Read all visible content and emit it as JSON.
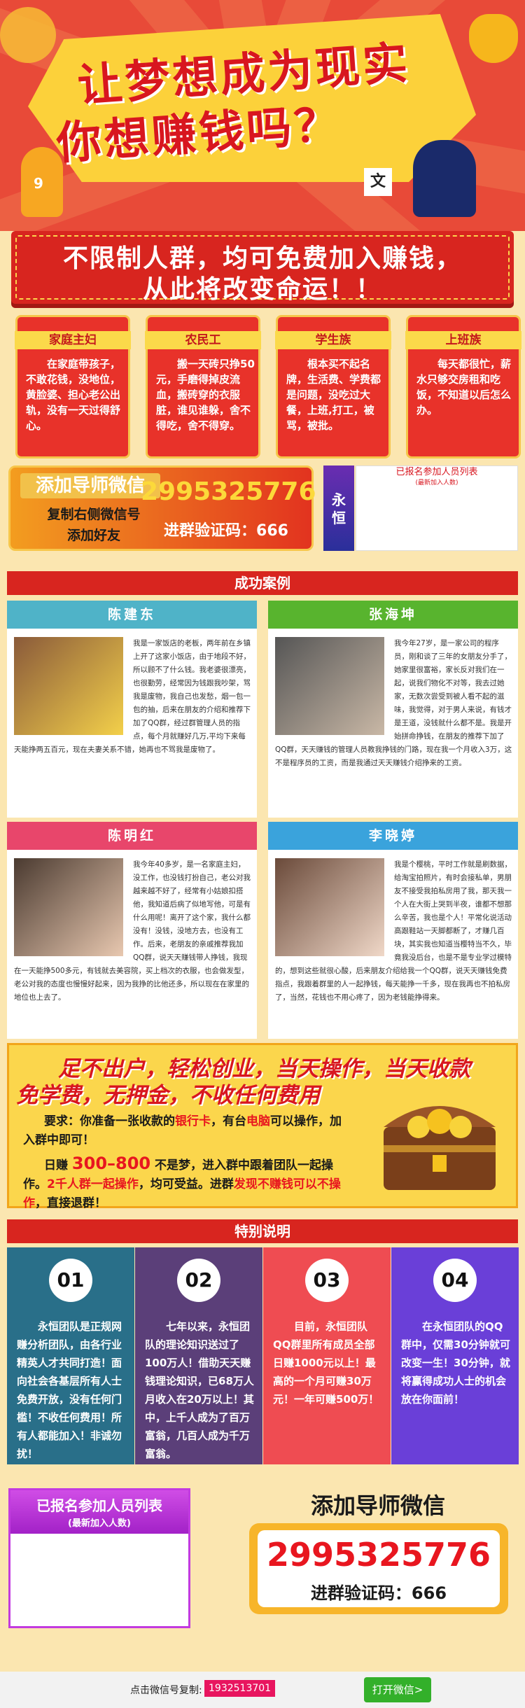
{
  "hero": {
    "line1": "让梦想成为现实",
    "line2": "你想赚钱吗？",
    "side_char": "文",
    "shirt_number": "9"
  },
  "banner": {
    "line1": "不限制人群，均可免费加入赚钱，",
    "line2": "从此将改变命运！！"
  },
  "persons": [
    {
      "tag": "家庭主妇",
      "text": "在家庭带孩子，不敢花钱，没地位，黄脸婆、担心老公出轨，没有一天过得舒心。"
    },
    {
      "tag": "农民工",
      "text": "搬一天砖只挣50元，手磨得掉皮流血，搬砖穿的衣服脏，谁见谁躲，舍不得吃，舍不得穿。"
    },
    {
      "tag": "学生族",
      "text": "根本买不起名牌，生活费、学费都是问题，没吃过大餐，上班,打工，被骂，被批。"
    },
    {
      "tag": "上班族",
      "text": "每天都很忙，薪水只够交房租和吃饭，不知道以后怎么办。"
    }
  ],
  "mentor": {
    "title": "添加导师微信",
    "copy_line1": "复制右侧微信号",
    "copy_line2": "添加好友",
    "number": "2995325776",
    "code_label": "进群验证码：666",
    "side_label": "永恒"
  },
  "reglist_small": {
    "title": "已报名参加人员列表",
    "subtitle": "(最新加入人数)"
  },
  "sections": {
    "cases": "成功案例",
    "special": "特别说明"
  },
  "cases": [
    {
      "name": "陈建东",
      "color": "#4fb3c8",
      "text": "我是一家饭店的老板，两年前在乡镇上开了这家小饭店，由于地段不好，所以顾不了什么钱。我老婆很漂亮，也很勤劳，经常因为钱跟我吵架，骂我是废物，我自己也发愁，烟一包一包的抽，后来在朋友的介绍和推荐下加了QQ群，经过群管理人员的指点，每个月就赚好几万,平均下来每天能挣两五百元，现在夫妻关系不错，她再也不骂我是废物了。"
    },
    {
      "name": "张海坤",
      "color": "#58b42e",
      "text": "我今年27岁，是一家公司的程序员，刚和谈了三年的女朋友分手了，她家里很富裕，家长反对我们在一起，说我们物化不对等，我去过她家，无数次尝受到被人看不起的滋味，我觉得，对于男人来说，有钱才是王道，没钱就什么都不是。我是开始拼命挣钱，在朋友的推荐下加了QQ群，天天赚钱的管理人员教我挣钱的门路，现在我一个月收入3万，这不是程序员的工资，而是我通过天天赚钱介绍挣来的工资。"
    },
    {
      "name": "陈明红",
      "color": "#e8466b",
      "text": "我今年40多岁，是一名家庭主妇，没工作，也没钱打扮自己，老公对我越来越不好了，经常有小姑娘扣搭他，我知道后病了似地写他，可是有什么用呢！离开了这个家，我什么都没有！没钱，没地方去，也没有工作。后来，老朋友的亲戚推荐我加QQ群，说天天赚钱带人挣钱，我现在一天能挣500多元，有钱就去美容院，买上档次的衣服，也会做发型，老公对我的态度也慢慢好起来，因为我挣的比他还多，所以现在在家里的地位也上去了。"
    },
    {
      "name": "李晓婷",
      "color": "#3aa3dc",
      "text": "我是个樱桃，平时工作就是刷数据，给淘宝拍照片，有时会接私单，男朋友不接受我拍私房用了我，那天我一个人在大街上哭到半夜，谁都不想那么辛苦，我也是个人！平常化说活动高跟鞋站一天脚都断了，才赚几百块，其实我也知道当樱特当不久，毕竟我没后台，也是不是专业学过模特的，想到这些就很心酸，后来朋友介绍给我一个QQ群，说天天赚钱免费指点，我跟着群里的人一起挣钱，每天能挣一千多，现在我再也不拍私房了，当然，花钱也不用心疼了，因为老钱能挣得来。"
    }
  ],
  "promo": {
    "title1": "足不出户，轻松创业，当天操作，当天收款",
    "title2": "免学费，无押金，不收任何费用",
    "req_label": "要求：",
    "req_text_a": "你准备一张收款的",
    "req_bank": "银行卡",
    "req_text_b": "，有台",
    "req_pc": "电脑",
    "req_text_c": "可以操作，加入群中即可！",
    "daily_label": "日赚",
    "daily_amount": "300–800",
    "daily_text": "不是梦，进入群中跟着团队一起操作。",
    "team_text": "2千人群一起操作",
    "team_text_b": "，均可受益。进群",
    "no_earn": "发现不赚钱可以不操作",
    "exit_text": "，直接退群！"
  },
  "specials": [
    {
      "num": "01",
      "color": "#296f89",
      "text": "永恒团队是正规网赚分析团队，由各行业精英人才共同打造！面向社会各基层所有人士免费开放，没有任何门槛！不收任何费用！所有人都能加入！非诚勿扰！"
    },
    {
      "num": "02",
      "color": "#5b3f79",
      "text": "七年以来，永恒团队的理论知识送过了100万人！借助天天赚钱理论知识，已68万人月收入在20万以上！其中，上千人成为了百万富翁，几百人成为千万富翁。"
    },
    {
      "num": "03",
      "color": "#ef4c52",
      "text": "目前，永恒团队QQ群里所有成员全部日赚1000元以上！最高的一个月可赚30万元！一年可赚500万！"
    },
    {
      "num": "04",
      "color": "#6a3fd8",
      "text": "在永恒团队的QQ群中，仅需30分钟就可改变一生！30分钟，就将赢得成功人士的机会放在你面前！"
    }
  ],
  "reglist_big": {
    "title": "已报名参加人员列表",
    "subtitle": "(最新加入人数)"
  },
  "mentor2": {
    "title": "添加导师微信",
    "number": "2995325776",
    "code_label": "进群验证码：666"
  },
  "footer": {
    "label": "点击微信号复制:",
    "number": "1932513701",
    "button": "打开微信>"
  }
}
